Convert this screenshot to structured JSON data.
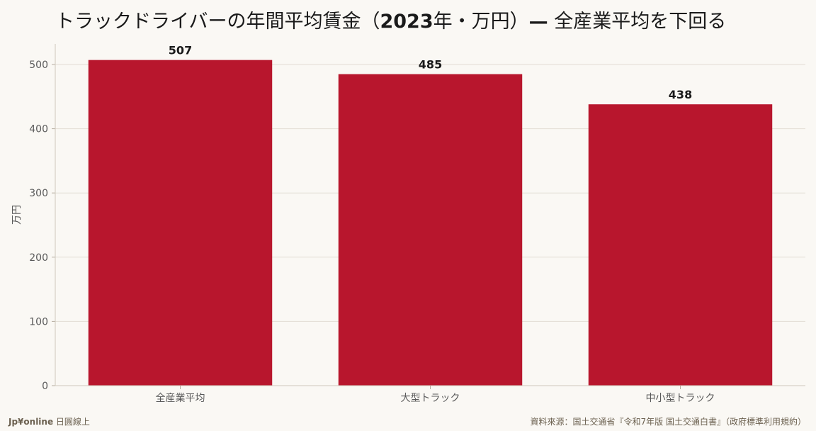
{
  "title": {
    "part1": "トラックドライバーの年間平均賃金（",
    "year": "2023",
    "part2": "年・万円）",
    "dash": "—",
    "part3": " 全産業平均を下回る"
  },
  "footer": {
    "brand": "Jp¥online",
    "brand_suffix": " 日圓線上",
    "source": "資料來源：国土交通省『令和7年版 国土交通白書』（政府標準利用規約）"
  },
  "colors": {
    "bar": "#b8162d",
    "grid": "#e2ddd4",
    "axis_text": "#5a5a5a",
    "value_text": "#1a1a1a"
  },
  "chart_data": {
    "type": "bar",
    "categories": [
      "全産業平均",
      "大型トラック",
      "中小型トラック"
    ],
    "values": [
      507,
      485,
      438
    ],
    "title": "トラックドライバーの年間平均賃金（2023年・万円）— 全産業平均を下回る",
    "xlabel": "",
    "ylabel": "万円",
    "ylim": [
      0,
      532
    ],
    "yticks": [
      0,
      100,
      200,
      300,
      400,
      500
    ],
    "grid": true,
    "data_labels": true
  }
}
